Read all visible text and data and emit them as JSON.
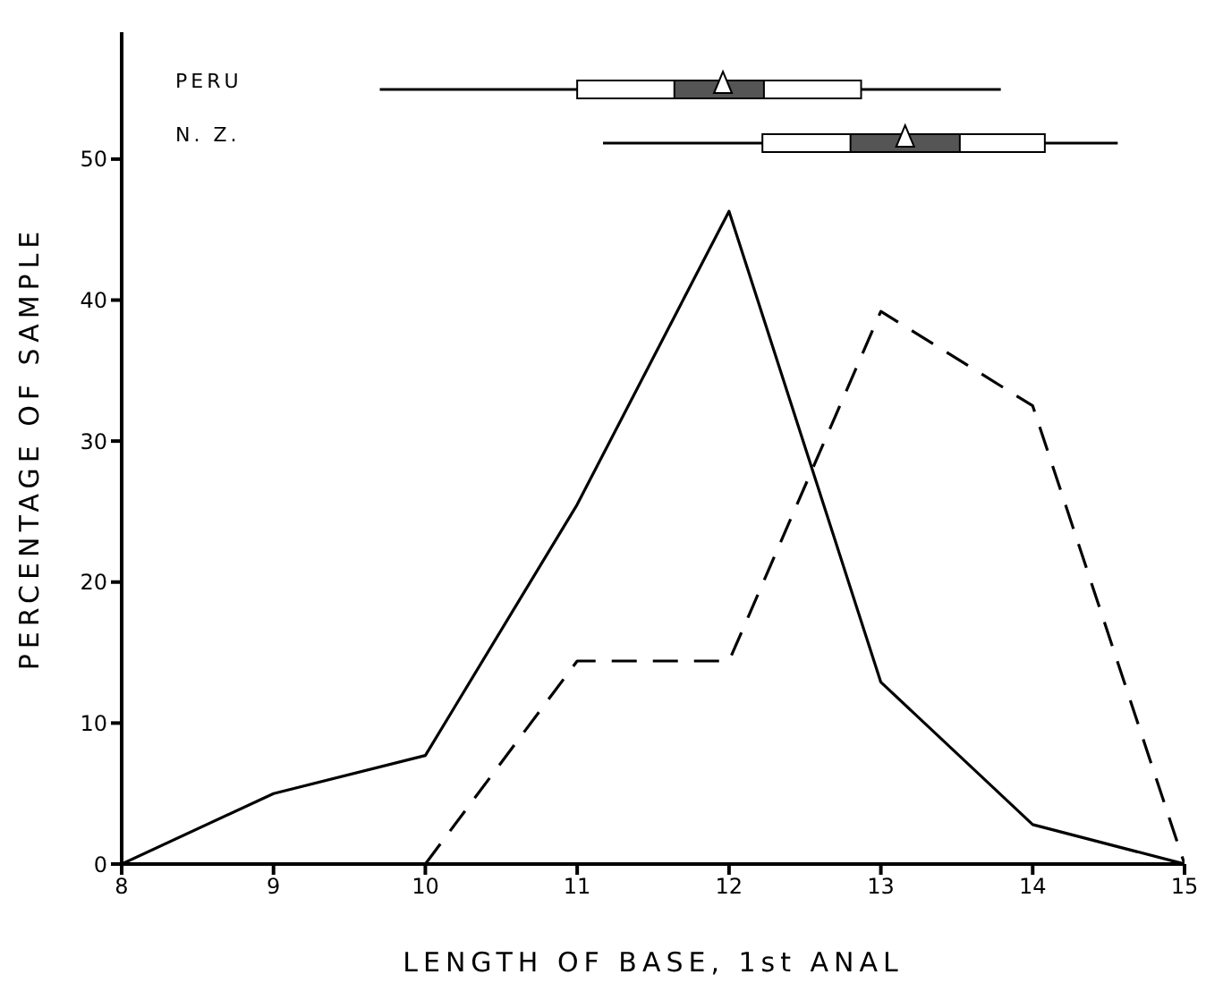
{
  "chart_data": [
    {
      "type": "box",
      "orientation": "horizontal",
      "categories": [
        "PERU",
        "N. Z."
      ],
      "xlim": [
        8,
        15
      ],
      "tick_labels": "y",
      "marker": "triangle",
      "series": [
        {
          "color": "#ffffff",
          "boxes": [
            {
              "low": 9.7,
              "q1": 11.0,
              "mean": 11.96,
              "q3": 12.87,
              "high": 13.79
            },
            {
              "low": 11.17,
              "q1": 12.22,
              "mean": 13.16,
              "q3": 14.08,
              "high": 14.56
            }
          ]
        },
        {
          "color": "#555555",
          "boxes": [
            {
              "q1": 11.64,
              "q3": 12.23
            },
            {
              "q1": 12.8,
              "q3": 13.52
            }
          ]
        }
      ]
    },
    {
      "type": "line",
      "x": [
        8,
        9,
        10,
        11,
        12,
        13,
        14,
        15
      ],
      "xlabel": "LENGTH OF BASE, 1st ANAL",
      "ylabel": "PERCENTAGE OF SAMPLE",
      "xlim": [
        8,
        15
      ],
      "xticks": [
        8,
        9,
        10,
        11,
        12,
        13,
        14,
        15
      ],
      "ylim": [
        0,
        59
      ],
      "yticks": [
        0,
        10,
        20,
        30,
        40,
        50
      ],
      "grid": false,
      "legend": false,
      "marker": "none",
      "series": [
        {
          "color": "#000000",
          "line_style": "solid",
          "values": [
            0,
            5.0,
            7.7,
            25.5,
            46.3,
            12.9,
            2.8,
            0
          ]
        },
        {
          "color": "#000000",
          "line_style": "dashed",
          "values": [
            null,
            null,
            0,
            14.4,
            14.4,
            39.2,
            32.5,
            0
          ]
        }
      ]
    }
  ]
}
